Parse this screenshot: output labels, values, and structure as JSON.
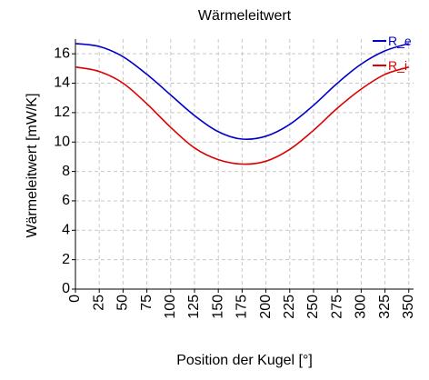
{
  "chart_data": {
    "type": "line",
    "title": "Wärmeleitwert",
    "xlabel": "Position der Kugel [°]",
    "ylabel": "Wärmeleitwert [mW/K]",
    "xlim": [
      0,
      355
    ],
    "ylim": [
      0,
      17
    ],
    "xticks": [
      "0",
      "25",
      "50",
      "75",
      "100",
      "125",
      "150",
      "175",
      "200",
      "225",
      "250",
      "275",
      "300",
      "325",
      "350"
    ],
    "yticks": [
      "0",
      "2",
      "4",
      "6",
      "8",
      "10",
      "12",
      "14",
      "16"
    ],
    "grid": true,
    "legend_position": "top-right",
    "x": [
      0,
      25,
      50,
      75,
      100,
      125,
      150,
      175,
      200,
      225,
      250,
      275,
      300,
      325,
      350
    ],
    "series": [
      {
        "name": "R_e",
        "color": "#0000c8",
        "values": [
          16.7,
          16.5,
          15.8,
          14.6,
          13.2,
          11.8,
          10.7,
          10.2,
          10.4,
          11.2,
          12.5,
          14.0,
          15.3,
          16.2,
          16.7
        ]
      },
      {
        "name": "R_i",
        "color": "#dc0000",
        "values": [
          15.1,
          14.8,
          14.0,
          12.6,
          11.0,
          9.6,
          8.8,
          8.5,
          8.7,
          9.5,
          10.8,
          12.3,
          13.6,
          14.6,
          15.1
        ]
      }
    ]
  }
}
